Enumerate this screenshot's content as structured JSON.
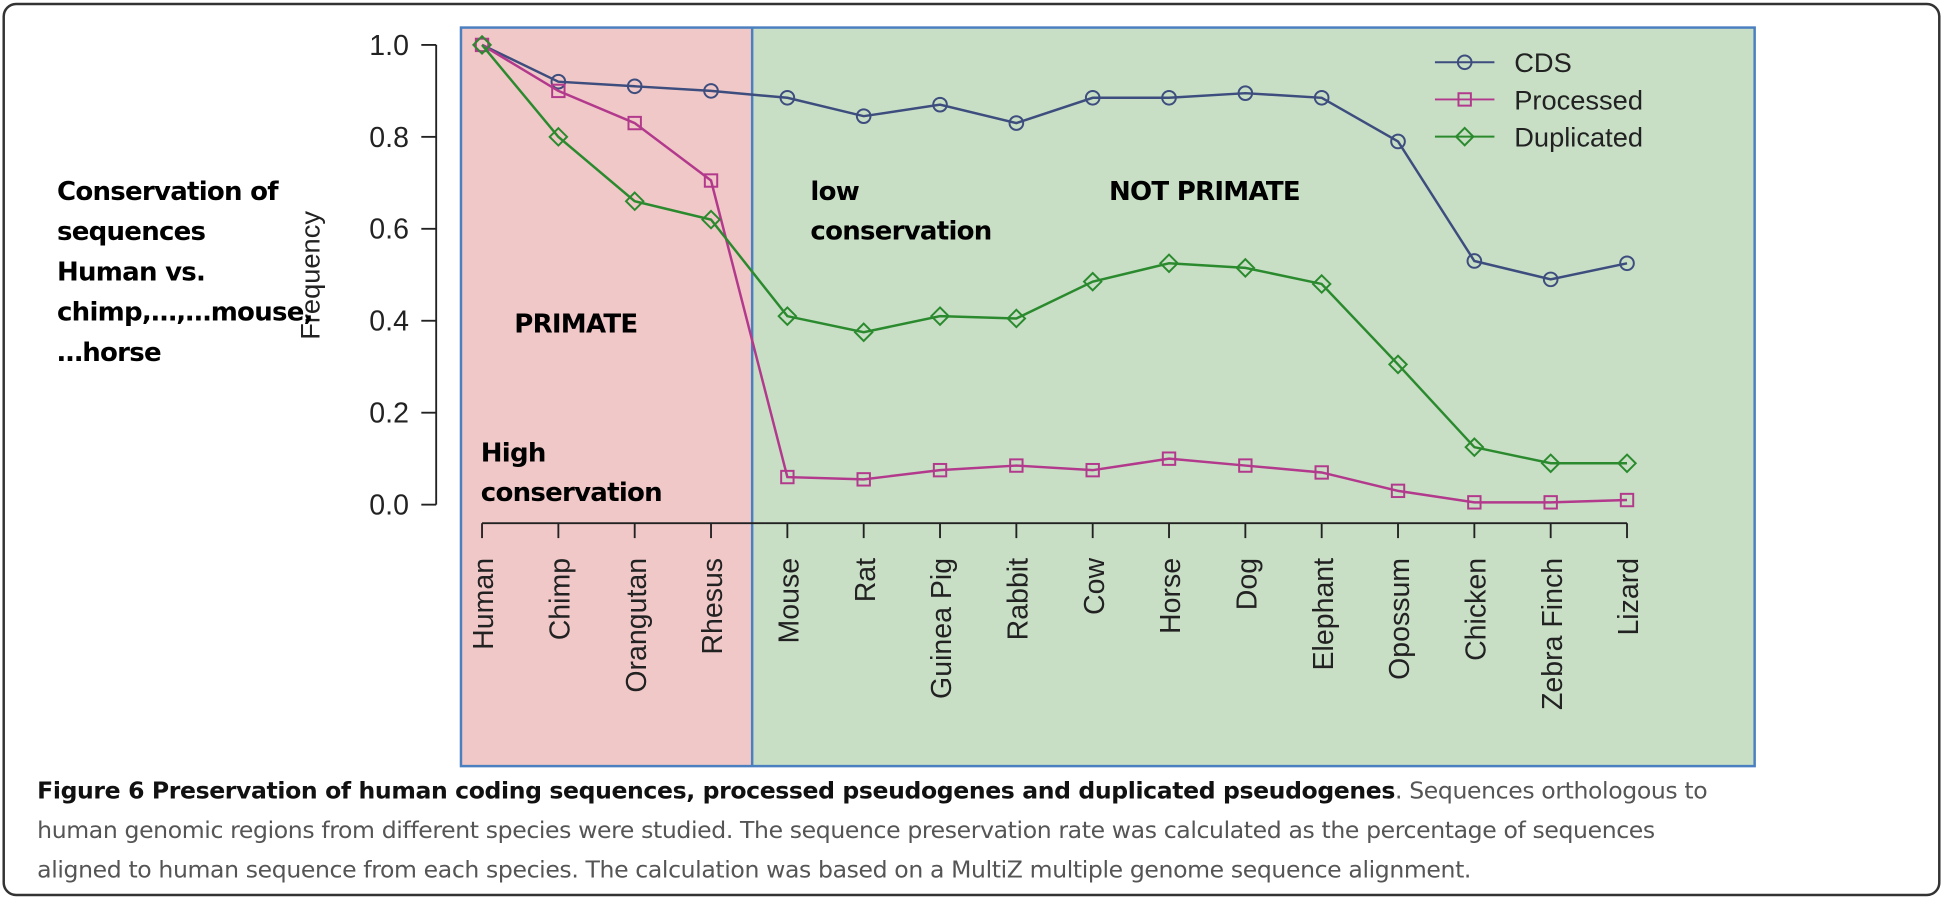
{
  "chart_data": {
    "type": "line",
    "categories": [
      "Human",
      "Chimp",
      "Orangutan",
      "Rhesus",
      "Mouse",
      "Rat",
      "Guinea Pig",
      "Rabbit",
      "Cow",
      "Horse",
      "Dog",
      "Elephant",
      "Opossum",
      "Chicken",
      "Zebra Finch",
      "Lizard"
    ],
    "series": [
      {
        "name": "CDS",
        "color": "#3d4d7e",
        "marker": "circle",
        "values": [
          1.0,
          0.92,
          0.91,
          0.9,
          0.885,
          0.845,
          0.87,
          0.83,
          0.885,
          0.885,
          0.895,
          0.885,
          0.79,
          0.53,
          0.49,
          0.525
        ]
      },
      {
        "name": "Processed",
        "color": "#b2398c",
        "marker": "square",
        "values": [
          1.0,
          0.9,
          0.83,
          0.705,
          0.06,
          0.055,
          0.075,
          0.085,
          0.075,
          0.1,
          0.085,
          0.07,
          0.03,
          0.005,
          0.005,
          0.01
        ]
      },
      {
        "name": "Duplicated",
        "color": "#2b8a2e",
        "marker": "diamond",
        "values": [
          1.0,
          0.8,
          0.66,
          0.62,
          0.41,
          0.375,
          0.41,
          0.405,
          0.485,
          0.525,
          0.515,
          0.48,
          0.305,
          0.125,
          0.09,
          0.09
        ]
      }
    ],
    "ylabel": "Frequency",
    "ylim": [
      0,
      1
    ],
    "yticks": [
      {
        "value": 0,
        "label": "0.0"
      },
      0.2,
      0.4,
      0.6,
      0.8,
      {
        "value": 1,
        "label": "1.0"
      }
    ],
    "legend": "upper right",
    "annotations": {
      "side_note": [
        "Conservation of",
        "sequences",
        "Human vs.",
        "chimp,…,…mouse,",
        "…horse"
      ],
      "primate": "PRIMATE",
      "high": [
        "High",
        "conservation"
      ],
      "low": [
        "low",
        "conservation"
      ],
      "not_primate": "NOT PRIMATE"
    },
    "caption": {
      "title": "Figure 6 Preservation of human coding sequences, processed pseudogenes and duplicated pseudogenes",
      "text": [
        ". Sequences orthologous to",
        "human genomic regions from different species were studied. The sequence preservation rate was calculated as the percentage of sequences",
        "aligned to human sequence from each species. The calculation was based on a MultiZ multiple genome sequence alignment."
      ]
    }
  }
}
